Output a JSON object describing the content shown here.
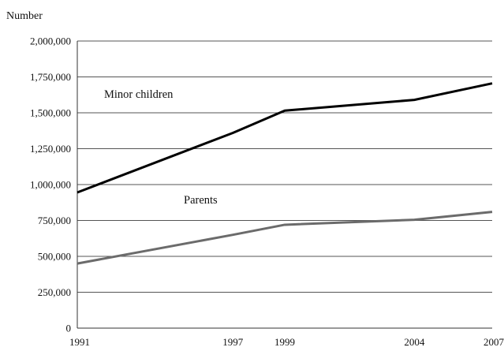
{
  "chart_data": {
    "type": "line",
    "title": "",
    "xlabel": "",
    "ylabel": "Number",
    "x": [
      "1991",
      "1997",
      "1999",
      "2004",
      "2007"
    ],
    "y_ticks": [
      "0",
      "250,000",
      "500,000",
      "750,000",
      "1,000,000",
      "1,250,000",
      "1,500,000",
      "1,750,000",
      "2,000,000"
    ],
    "ylim": [
      0,
      2000000
    ],
    "grid": "horizontal",
    "series": [
      {
        "name": "Minor children",
        "values": [
          945000,
          1360000,
          1515000,
          1590000,
          1705000
        ],
        "color": "#000000"
      },
      {
        "name": "Parents",
        "values": [
          450000,
          650000,
          720000,
          755000,
          810000
        ],
        "color": "#6b6b6b"
      }
    ]
  }
}
